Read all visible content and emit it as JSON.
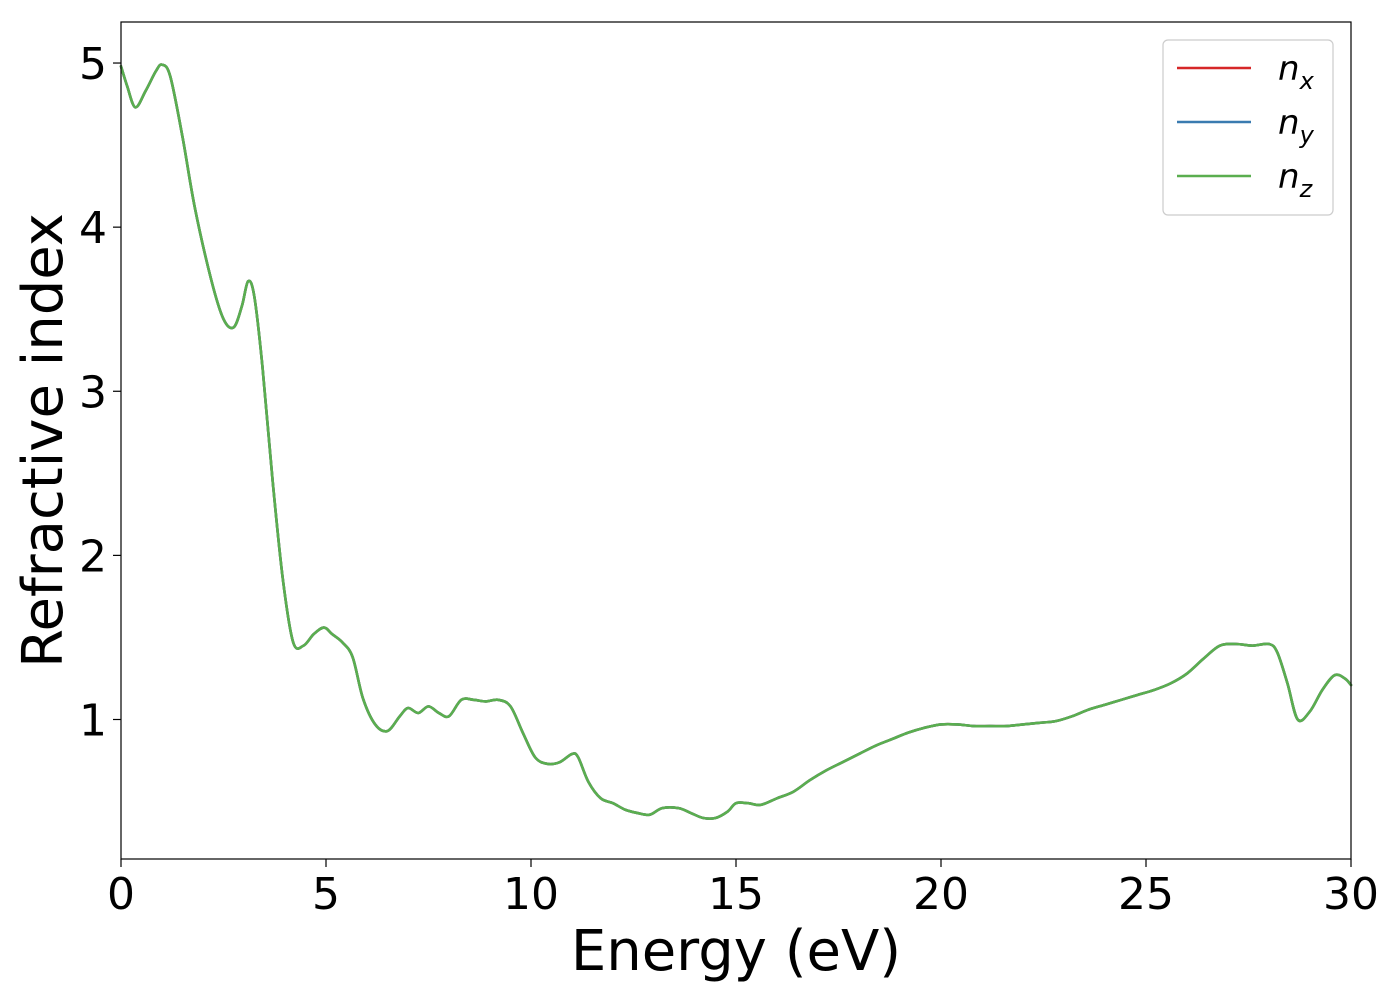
{
  "chart_data": {
    "type": "line",
    "xlabel": "Energy (eV)",
    "ylabel": "Refractive index",
    "xlim": [
      0,
      30
    ],
    "ylim": [
      0.15,
      5.25
    ],
    "xticks": [
      0,
      5,
      10,
      15,
      20,
      25,
      30
    ],
    "yticks": [
      1,
      2,
      3,
      4,
      5
    ],
    "grid": false,
    "legend_position": "top-right",
    "series": [
      {
        "name": "n_x",
        "label_base": "n",
        "label_sub": "x",
        "color": "#d62728",
        "x": [
          0.0,
          0.15,
          0.35,
          0.6,
          0.85,
          1.0,
          1.2,
          1.5,
          1.8,
          2.2,
          2.5,
          2.75,
          2.95,
          3.1,
          3.25,
          3.45,
          3.7,
          3.95,
          4.2,
          4.45,
          4.7,
          4.95,
          5.15,
          5.4,
          5.65,
          5.9,
          6.2,
          6.5,
          6.8,
          7.0,
          7.25,
          7.5,
          7.75,
          8.0,
          8.3,
          8.6,
          8.9,
          9.2,
          9.5,
          9.8,
          10.1,
          10.4,
          10.7,
          11.0,
          11.15,
          11.4,
          11.7,
          12.0,
          12.3,
          12.6,
          12.9,
          13.2,
          13.6,
          13.9,
          14.2,
          14.5,
          14.8,
          15.0,
          15.3,
          15.6,
          16.0,
          16.4,
          16.8,
          17.2,
          17.6,
          18.0,
          18.4,
          18.8,
          19.2,
          19.6,
          20.0,
          20.4,
          20.8,
          21.2,
          21.6,
          22.0,
          22.4,
          22.8,
          23.2,
          23.6,
          24.0,
          24.4,
          24.8,
          25.2,
          25.6,
          26.0,
          26.4,
          26.8,
          27.2,
          27.6,
          28.0,
          28.2,
          28.45,
          28.7,
          29.0,
          29.3,
          29.6,
          29.85,
          30.0
        ],
        "y": [
          4.98,
          4.86,
          4.73,
          4.83,
          4.95,
          4.99,
          4.92,
          4.55,
          4.12,
          3.68,
          3.44,
          3.39,
          3.52,
          3.67,
          3.58,
          3.15,
          2.45,
          1.85,
          1.47,
          1.45,
          1.52,
          1.56,
          1.52,
          1.47,
          1.38,
          1.13,
          0.97,
          0.93,
          1.02,
          1.07,
          1.04,
          1.08,
          1.04,
          1.02,
          1.12,
          1.12,
          1.11,
          1.12,
          1.08,
          0.92,
          0.77,
          0.73,
          0.74,
          0.79,
          0.77,
          0.62,
          0.52,
          0.49,
          0.45,
          0.43,
          0.42,
          0.46,
          0.46,
          0.43,
          0.4,
          0.4,
          0.44,
          0.49,
          0.49,
          0.48,
          0.52,
          0.56,
          0.63,
          0.69,
          0.74,
          0.79,
          0.84,
          0.88,
          0.92,
          0.95,
          0.97,
          0.97,
          0.96,
          0.96,
          0.96,
          0.97,
          0.98,
          0.99,
          1.02,
          1.06,
          1.09,
          1.12,
          1.15,
          1.18,
          1.22,
          1.28,
          1.37,
          1.45,
          1.46,
          1.45,
          1.46,
          1.41,
          1.22,
          1.0,
          1.05,
          1.18,
          1.27,
          1.25,
          1.21
        ]
      },
      {
        "name": "n_y",
        "label_base": "n",
        "label_sub": "y",
        "color": "#3a7bb0",
        "x": [
          0.0,
          0.15,
          0.35,
          0.6,
          0.85,
          1.0,
          1.2,
          1.5,
          1.8,
          2.2,
          2.5,
          2.75,
          2.95,
          3.1,
          3.25,
          3.45,
          3.7,
          3.95,
          4.2,
          4.45,
          4.7,
          4.95,
          5.15,
          5.4,
          5.65,
          5.9,
          6.2,
          6.5,
          6.8,
          7.0,
          7.25,
          7.5,
          7.75,
          8.0,
          8.3,
          8.6,
          8.9,
          9.2,
          9.5,
          9.8,
          10.1,
          10.4,
          10.7,
          11.0,
          11.15,
          11.4,
          11.7,
          12.0,
          12.3,
          12.6,
          12.9,
          13.2,
          13.6,
          13.9,
          14.2,
          14.5,
          14.8,
          15.0,
          15.3,
          15.6,
          16.0,
          16.4,
          16.8,
          17.2,
          17.6,
          18.0,
          18.4,
          18.8,
          19.2,
          19.6,
          20.0,
          20.4,
          20.8,
          21.2,
          21.6,
          22.0,
          22.4,
          22.8,
          23.2,
          23.6,
          24.0,
          24.4,
          24.8,
          25.2,
          25.6,
          26.0,
          26.4,
          26.8,
          27.2,
          27.6,
          28.0,
          28.2,
          28.45,
          28.7,
          29.0,
          29.3,
          29.6,
          29.85,
          30.0
        ],
        "y": [
          4.98,
          4.86,
          4.73,
          4.83,
          4.95,
          4.99,
          4.92,
          4.55,
          4.12,
          3.68,
          3.44,
          3.39,
          3.52,
          3.67,
          3.58,
          3.15,
          2.45,
          1.85,
          1.47,
          1.45,
          1.52,
          1.56,
          1.52,
          1.47,
          1.38,
          1.13,
          0.97,
          0.93,
          1.02,
          1.07,
          1.04,
          1.08,
          1.04,
          1.02,
          1.12,
          1.12,
          1.11,
          1.12,
          1.08,
          0.92,
          0.77,
          0.73,
          0.74,
          0.79,
          0.77,
          0.62,
          0.52,
          0.49,
          0.45,
          0.43,
          0.42,
          0.46,
          0.46,
          0.43,
          0.4,
          0.4,
          0.44,
          0.49,
          0.49,
          0.48,
          0.52,
          0.56,
          0.63,
          0.69,
          0.74,
          0.79,
          0.84,
          0.88,
          0.92,
          0.95,
          0.97,
          0.97,
          0.96,
          0.96,
          0.96,
          0.97,
          0.98,
          0.99,
          1.02,
          1.06,
          1.09,
          1.12,
          1.15,
          1.18,
          1.22,
          1.28,
          1.37,
          1.45,
          1.46,
          1.45,
          1.46,
          1.41,
          1.22,
          1.0,
          1.05,
          1.18,
          1.27,
          1.25,
          1.21
        ]
      },
      {
        "name": "n_z",
        "label_base": "n",
        "label_sub": "z",
        "color": "#5aae4f",
        "x": [
          0.0,
          0.15,
          0.35,
          0.6,
          0.85,
          1.0,
          1.2,
          1.5,
          1.8,
          2.2,
          2.5,
          2.75,
          2.95,
          3.1,
          3.25,
          3.45,
          3.7,
          3.95,
          4.2,
          4.45,
          4.7,
          4.95,
          5.15,
          5.4,
          5.65,
          5.9,
          6.2,
          6.5,
          6.8,
          7.0,
          7.25,
          7.5,
          7.75,
          8.0,
          8.3,
          8.6,
          8.9,
          9.2,
          9.5,
          9.8,
          10.1,
          10.4,
          10.7,
          11.0,
          11.15,
          11.4,
          11.7,
          12.0,
          12.3,
          12.6,
          12.9,
          13.2,
          13.6,
          13.9,
          14.2,
          14.5,
          14.8,
          15.0,
          15.3,
          15.6,
          16.0,
          16.4,
          16.8,
          17.2,
          17.6,
          18.0,
          18.4,
          18.8,
          19.2,
          19.6,
          20.0,
          20.4,
          20.8,
          21.2,
          21.6,
          22.0,
          22.4,
          22.8,
          23.2,
          23.6,
          24.0,
          24.4,
          24.8,
          25.2,
          25.6,
          26.0,
          26.4,
          26.8,
          27.2,
          27.6,
          28.0,
          28.2,
          28.45,
          28.7,
          29.0,
          29.3,
          29.6,
          29.85,
          30.0
        ],
        "y": [
          4.98,
          4.86,
          4.73,
          4.83,
          4.95,
          4.99,
          4.92,
          4.55,
          4.12,
          3.68,
          3.44,
          3.39,
          3.52,
          3.67,
          3.58,
          3.15,
          2.45,
          1.85,
          1.47,
          1.45,
          1.52,
          1.56,
          1.52,
          1.47,
          1.38,
          1.13,
          0.97,
          0.93,
          1.02,
          1.07,
          1.04,
          1.08,
          1.04,
          1.02,
          1.12,
          1.12,
          1.11,
          1.12,
          1.08,
          0.92,
          0.77,
          0.73,
          0.74,
          0.79,
          0.77,
          0.62,
          0.52,
          0.49,
          0.45,
          0.43,
          0.42,
          0.46,
          0.46,
          0.43,
          0.4,
          0.4,
          0.44,
          0.49,
          0.49,
          0.48,
          0.52,
          0.56,
          0.63,
          0.69,
          0.74,
          0.79,
          0.84,
          0.88,
          0.92,
          0.95,
          0.97,
          0.97,
          0.96,
          0.96,
          0.96,
          0.97,
          0.98,
          0.99,
          1.02,
          1.06,
          1.09,
          1.12,
          1.15,
          1.18,
          1.22,
          1.28,
          1.37,
          1.45,
          1.46,
          1.45,
          1.46,
          1.41,
          1.22,
          1.0,
          1.05,
          1.18,
          1.27,
          1.25,
          1.21
        ]
      }
    ]
  }
}
